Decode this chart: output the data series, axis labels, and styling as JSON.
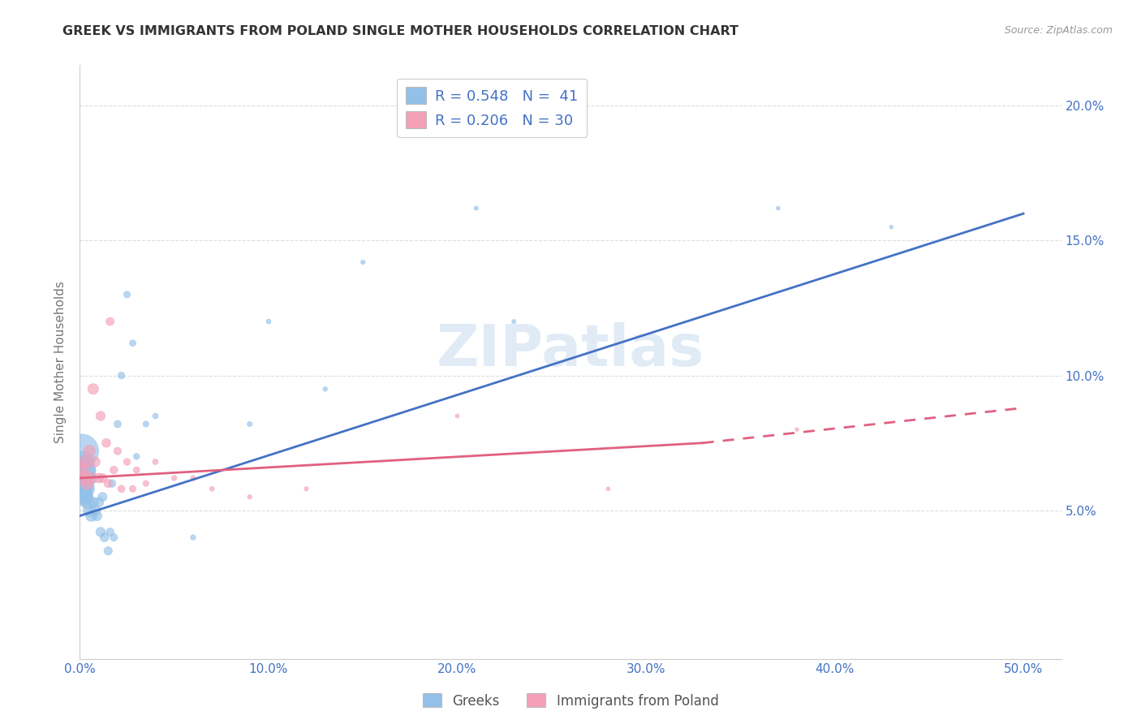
{
  "title": "GREEK VS IMMIGRANTS FROM POLAND SINGLE MOTHER HOUSEHOLDS CORRELATION CHART",
  "source": "Source: ZipAtlas.com",
  "ylabel": "Single Mother Households",
  "xlim": [
    0.0,
    0.52
  ],
  "ylim": [
    -0.005,
    0.215
  ],
  "xticks": [
    0.0,
    0.1,
    0.2,
    0.3,
    0.4,
    0.5
  ],
  "yticks_right": [
    0.05,
    0.1,
    0.15,
    0.2
  ],
  "xticklabels": [
    "0.0%",
    "10.0%",
    "20.0%",
    "30.0%",
    "40.0%",
    "50.0%"
  ],
  "yticklabels_right": [
    "5.0%",
    "10.0%",
    "15.0%",
    "20.0%"
  ],
  "blue_color": "#92C0E8",
  "pink_color": "#F4A0B8",
  "blue_line_color": "#4472C4",
  "pink_line_color": "#E06080",
  "text_color": "#4472C4",
  "legend1_label": "R = 0.548   N =  41",
  "legend2_label": "R = 0.206   N = 30",
  "bottom_legend1": "Greeks",
  "bottom_legend2": "Immigrants from Poland",
  "blue_scatter_x": [
    0.001,
    0.001,
    0.001,
    0.002,
    0.002,
    0.002,
    0.003,
    0.003,
    0.004,
    0.004,
    0.005,
    0.005,
    0.006,
    0.006,
    0.007,
    0.008,
    0.009,
    0.01,
    0.011,
    0.012,
    0.013,
    0.015,
    0.016,
    0.017,
    0.018,
    0.02,
    0.022,
    0.025,
    0.028,
    0.03,
    0.035,
    0.04,
    0.06,
    0.09,
    0.1,
    0.13,
    0.15,
    0.21,
    0.23,
    0.37,
    0.43
  ],
  "blue_scatter_y": [
    0.072,
    0.065,
    0.058,
    0.068,
    0.062,
    0.055,
    0.06,
    0.055,
    0.058,
    0.053,
    0.065,
    0.05,
    0.062,
    0.048,
    0.053,
    0.05,
    0.048,
    0.053,
    0.042,
    0.055,
    0.04,
    0.035,
    0.042,
    0.06,
    0.04,
    0.082,
    0.1,
    0.13,
    0.112,
    0.07,
    0.082,
    0.085,
    0.04,
    0.082,
    0.12,
    0.095,
    0.142,
    0.162,
    0.12,
    0.162,
    0.155
  ],
  "blue_scatter_sizes": [
    900,
    600,
    400,
    350,
    280,
    250,
    220,
    180,
    160,
    140,
    130,
    120,
    110,
    100,
    90,
    85,
    80,
    75,
    70,
    65,
    60,
    55,
    50,
    48,
    45,
    42,
    38,
    35,
    32,
    30,
    28,
    25,
    22,
    20,
    18,
    16,
    15,
    14,
    13,
    12,
    11
  ],
  "pink_scatter_x": [
    0.001,
    0.002,
    0.003,
    0.004,
    0.005,
    0.006,
    0.007,
    0.008,
    0.01,
    0.011,
    0.012,
    0.014,
    0.015,
    0.016,
    0.018,
    0.02,
    0.022,
    0.025,
    0.028,
    0.03,
    0.035,
    0.04,
    0.05,
    0.06,
    0.07,
    0.09,
    0.12,
    0.2,
    0.28,
    0.38
  ],
  "pink_scatter_y": [
    0.065,
    0.062,
    0.068,
    0.06,
    0.072,
    0.062,
    0.095,
    0.068,
    0.062,
    0.085,
    0.062,
    0.075,
    0.06,
    0.12,
    0.065,
    0.072,
    0.058,
    0.068,
    0.058,
    0.065,
    0.06,
    0.068,
    0.062,
    0.062,
    0.058,
    0.055,
    0.058,
    0.085,
    0.058,
    0.08
  ],
  "pink_scatter_sizes": [
    200,
    160,
    140,
    120,
    110,
    100,
    90,
    85,
    75,
    70,
    65,
    60,
    55,
    52,
    48,
    45,
    40,
    38,
    35,
    32,
    28,
    25,
    22,
    20,
    18,
    16,
    14,
    13,
    12,
    11
  ],
  "blue_line": {
    "x": [
      0.0,
      0.5
    ],
    "y": [
      0.048,
      0.16
    ]
  },
  "pink_solid": {
    "x": [
      0.0,
      0.33
    ],
    "y": [
      0.062,
      0.075
    ]
  },
  "pink_dashed": {
    "x": [
      0.33,
      0.5
    ],
    "y": [
      0.075,
      0.088
    ]
  },
  "background_color": "#FFFFFF",
  "grid_color": "#DDDDDD",
  "watermark_text": "ZIPatlas",
  "watermark_color": "#C8DCF0"
}
